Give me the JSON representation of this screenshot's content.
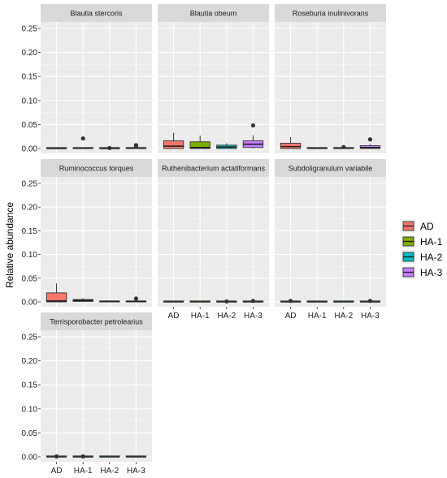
{
  "chart_data": {
    "type": "boxplot",
    "ylabel": "Relative abundance",
    "xlabel": "",
    "ylim": [
      0,
      0.25
    ],
    "y_ticks": [
      "0.00",
      "0.05",
      "0.10",
      "0.15",
      "0.20",
      "0.25"
    ],
    "categories": [
      "AD",
      "HA-1",
      "HA-2",
      "HA-3"
    ],
    "colors": {
      "AD": "#F8766D",
      "HA-1": "#7CAE00",
      "HA-2": "#00BFC4",
      "HA-3": "#C77CFF"
    },
    "legend": {
      "title": "",
      "placement": "right",
      "entries": [
        "AD",
        "HA-1",
        "HA-2",
        "HA-3"
      ]
    },
    "grid": true,
    "facets": [
      {
        "name": "Blautia stercoris",
        "groups": [
          {
            "min": 0,
            "q1": 0,
            "median": 0,
            "q3": 0.001,
            "max": 0.002,
            "outliers": []
          },
          {
            "min": 0,
            "q1": 0,
            "median": 0.0005,
            "q3": 0.001,
            "max": 0.002,
            "outliers": [
              0.021
            ]
          },
          {
            "min": 0,
            "q1": 0,
            "median": 0,
            "q3": 0.001,
            "max": 0.002,
            "outliers": [
              0.001
            ]
          },
          {
            "min": 0,
            "q1": 0,
            "median": 0.001,
            "q3": 0.002,
            "max": 0.003,
            "outliers": [
              0.007,
              0.004
            ]
          }
        ]
      },
      {
        "name": "Blautia obeum",
        "groups": [
          {
            "min": 0,
            "q1": 0.0,
            "median": 0.005,
            "q3": 0.016,
            "max": 0.033,
            "outliers": []
          },
          {
            "min": 0,
            "q1": 0.0,
            "median": 0.002,
            "q3": 0.014,
            "max": 0.027,
            "outliers": []
          },
          {
            "min": 0,
            "q1": 0.0,
            "median": 0.003,
            "q3": 0.007,
            "max": 0.011,
            "outliers": []
          },
          {
            "min": 0,
            "q1": 0.002,
            "median": 0.009,
            "q3": 0.016,
            "max": 0.028,
            "outliers": [
              0.048
            ]
          }
        ]
      },
      {
        "name": "Roseburia inulinivorans",
        "groups": [
          {
            "min": 0,
            "q1": 0.0,
            "median": 0.004,
            "q3": 0.011,
            "max": 0.024,
            "outliers": []
          },
          {
            "min": 0,
            "q1": 0,
            "median": 0.0005,
            "q3": 0.001,
            "max": 0.002,
            "outliers": []
          },
          {
            "min": 0,
            "q1": 0,
            "median": 0.0005,
            "q3": 0.001,
            "max": 0.002,
            "outliers": [
              0.003
            ]
          },
          {
            "min": 0,
            "q1": 0.0,
            "median": 0.002,
            "q3": 0.006,
            "max": 0.009,
            "outliers": [
              0.019
            ]
          }
        ]
      },
      {
        "name": "Ruminococcus torques",
        "groups": [
          {
            "min": 0,
            "q1": 0.0,
            "median": 0.002,
            "q3": 0.019,
            "max": 0.039,
            "outliers": []
          },
          {
            "min": 0,
            "q1": 0.001,
            "median": 0.003,
            "q3": 0.005,
            "max": 0.008,
            "outliers": []
          },
          {
            "min": 0,
            "q1": 0,
            "median": 0.001,
            "q3": 0.002,
            "max": 0.003,
            "outliers": []
          },
          {
            "min": 0,
            "q1": 0,
            "median": 0.001,
            "q3": 0.002,
            "max": 0.003,
            "outliers": [
              0.007
            ]
          }
        ]
      },
      {
        "name": "Ruthenibacterium actatiformans",
        "groups": [
          {
            "min": 0,
            "q1": 0,
            "median": 0,
            "q3": 0.001,
            "max": 0.001,
            "outliers": []
          },
          {
            "min": 0,
            "q1": 0,
            "median": 0,
            "q3": 0.001,
            "max": 0.001,
            "outliers": []
          },
          {
            "min": 0,
            "q1": 0,
            "median": 0,
            "q3": 0.001,
            "max": 0.001,
            "outliers": [
              0.001
            ]
          },
          {
            "min": 0,
            "q1": 0,
            "median": 0,
            "q3": 0.001,
            "max": 0.001,
            "outliers": [
              0.002
            ]
          }
        ]
      },
      {
        "name": "Subdoligranulum variabile",
        "groups": [
          {
            "min": 0,
            "q1": 0,
            "median": 0,
            "q3": 0.001,
            "max": 0.001,
            "outliers": [
              0.002
            ]
          },
          {
            "min": 0,
            "q1": 0,
            "median": 0,
            "q3": 0.001,
            "max": 0.001,
            "outliers": []
          },
          {
            "min": 0,
            "q1": 0,
            "median": 0,
            "q3": 0.001,
            "max": 0.001,
            "outliers": []
          },
          {
            "min": 0,
            "q1": 0,
            "median": 0,
            "q3": 0.001,
            "max": 0.001,
            "outliers": [
              0.002
            ]
          }
        ]
      },
      {
        "name": "Terrisporobacter petrolearius",
        "groups": [
          {
            "min": 0,
            "q1": 0,
            "median": 0,
            "q3": 0.001,
            "max": 0.001,
            "outliers": [
              0.001
            ]
          },
          {
            "min": 0,
            "q1": 0,
            "median": 0,
            "q3": 0.001,
            "max": 0.001,
            "outliers": [
              0.001
            ]
          },
          {
            "min": 0,
            "q1": 0,
            "median": 0,
            "q3": 0.001,
            "max": 0.001,
            "outliers": []
          },
          {
            "min": 0,
            "q1": 0,
            "median": 0,
            "q3": 0.001,
            "max": 0.001,
            "outliers": []
          }
        ]
      }
    ]
  }
}
